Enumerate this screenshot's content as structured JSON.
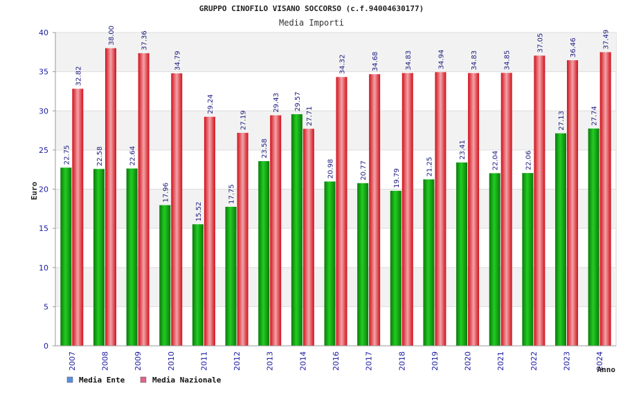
{
  "chart_data": {
    "type": "bar",
    "title": "GRUPPO CINOFILO VISANO SOCCORSO (c.f.94004630177)",
    "subtitle": "Media Importi",
    "xlabel": "Anno",
    "ylabel": "Euro",
    "ylim": [
      0,
      40
    ],
    "yticks": [
      0,
      5,
      10,
      15,
      20,
      25,
      30,
      35,
      40
    ],
    "grid": true,
    "legend_position": "bottom-left",
    "categories": [
      "2007",
      "2008",
      "2009",
      "2010",
      "2011",
      "2012",
      "2013",
      "2014",
      "2016",
      "2017",
      "2018",
      "2019",
      "2020",
      "2021",
      "2022",
      "2023",
      "2024"
    ],
    "series": [
      {
        "name": "Media Ente",
        "legend_color": "#5b8fe0",
        "bar_color": "#11aa11",
        "values": [
          22.75,
          22.58,
          22.64,
          17.96,
          15.52,
          17.75,
          23.58,
          29.57,
          20.98,
          20.77,
          19.79,
          21.25,
          23.41,
          22.04,
          22.06,
          27.13,
          27.74
        ],
        "labels": [
          "22.75",
          "22.58",
          "22.64",
          "17.96",
          "15.52",
          "17.75",
          "23.58",
          "29.57",
          "20.98",
          "20.77",
          "19.79",
          "21.25",
          "23.41",
          "22.04",
          "22.06",
          "27.13",
          "27.74"
        ]
      },
      {
        "name": "Media Nazionale",
        "legend_color": "#dd6688",
        "bar_color": "#e8202a",
        "values": [
          32.82,
          38.0,
          37.36,
          34.79,
          29.24,
          27.19,
          29.43,
          27.71,
          34.32,
          34.68,
          34.83,
          34.94,
          34.83,
          34.85,
          37.05,
          36.46,
          37.49
        ],
        "labels": [
          "32.82",
          "38.00",
          "37.36",
          "34.79",
          "29.24",
          "27.19",
          "29.43",
          "27.71",
          "34.32",
          "34.68",
          "34.83",
          "34.94",
          "34.83",
          "34.85",
          "37.05",
          "36.46",
          "37.49"
        ]
      }
    ]
  }
}
